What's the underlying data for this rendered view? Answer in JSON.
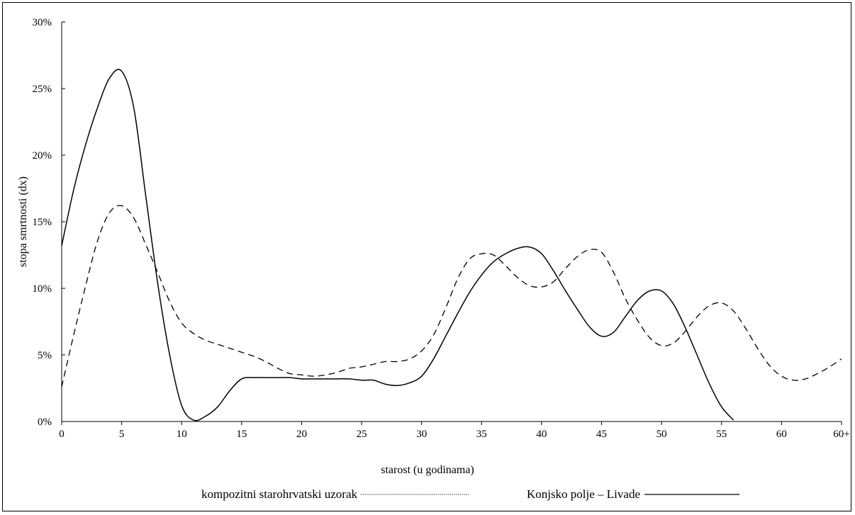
{
  "chart_data": {
    "type": "line",
    "title": "",
    "xlabel": "starost (u godinama)",
    "ylabel": "stopa smrtnosti (dx)",
    "x_ticks": [
      "0",
      "5",
      "10",
      "15",
      "20",
      "25",
      "30",
      "35",
      "40",
      "45",
      "50",
      "55",
      "60",
      "60+"
    ],
    "y_ticks": [
      "0%",
      "5%",
      "10%",
      "15%",
      "20%",
      "25%",
      "30%"
    ],
    "xlim": [
      0,
      65
    ],
    "ylim": [
      0,
      30
    ],
    "grid": false,
    "legend_position": "bottom",
    "series": [
      {
        "name": "kompozitni starohrvatski uzorak",
        "style": "dashed",
        "color": "#000000",
        "points": [
          [
            0,
            2.6
          ],
          [
            1,
            6.5
          ],
          [
            2,
            10.2
          ],
          [
            3,
            13.6
          ],
          [
            4,
            15.7
          ],
          [
            5,
            16.2
          ],
          [
            6,
            15.3
          ],
          [
            7,
            13.3
          ],
          [
            8,
            11.2
          ],
          [
            9,
            9.0
          ],
          [
            10,
            7.4
          ],
          [
            11,
            6.6
          ],
          [
            12,
            6.1
          ],
          [
            13,
            5.8
          ],
          [
            14,
            5.5
          ],
          [
            15,
            5.2
          ],
          [
            16,
            4.9
          ],
          [
            17,
            4.5
          ],
          [
            18,
            4.0
          ],
          [
            19,
            3.6
          ],
          [
            20,
            3.5
          ],
          [
            21,
            3.4
          ],
          [
            22,
            3.5
          ],
          [
            23,
            3.7
          ],
          [
            24,
            4.0
          ],
          [
            25,
            4.1
          ],
          [
            26,
            4.3
          ],
          [
            27,
            4.5
          ],
          [
            28,
            4.5
          ],
          [
            29,
            4.7
          ],
          [
            30,
            5.3
          ],
          [
            31,
            6.5
          ],
          [
            32,
            8.5
          ],
          [
            33,
            10.7
          ],
          [
            34,
            12.2
          ],
          [
            35,
            12.6
          ],
          [
            36,
            12.5
          ],
          [
            37,
            11.7
          ],
          [
            38,
            10.8
          ],
          [
            39,
            10.2
          ],
          [
            40,
            10.1
          ],
          [
            41,
            10.5
          ],
          [
            42,
            11.5
          ],
          [
            43,
            12.4
          ],
          [
            44,
            12.9
          ],
          [
            45,
            12.7
          ],
          [
            46,
            11.2
          ],
          [
            47,
            9.2
          ],
          [
            48,
            7.6
          ],
          [
            49,
            6.3
          ],
          [
            50,
            5.7
          ],
          [
            51,
            5.9
          ],
          [
            52,
            6.8
          ],
          [
            53,
            7.9
          ],
          [
            54,
            8.7
          ],
          [
            55,
            8.9
          ],
          [
            56,
            8.3
          ],
          [
            57,
            7.0
          ],
          [
            58,
            5.5
          ],
          [
            59,
            4.2
          ],
          [
            60,
            3.4
          ],
          [
            61,
            3.1
          ],
          [
            62,
            3.2
          ],
          [
            63,
            3.6
          ],
          [
            64,
            4.1
          ],
          [
            65,
            4.7
          ]
        ]
      },
      {
        "name": "Konjsko polje – Livade",
        "style": "solid",
        "color": "#000000",
        "points": [
          [
            0,
            13.2
          ],
          [
            1,
            17.4
          ],
          [
            2,
            20.8
          ],
          [
            3,
            23.6
          ],
          [
            4,
            25.8
          ],
          [
            5,
            26.3
          ],
          [
            6,
            23.6
          ],
          [
            7,
            17.0
          ],
          [
            8,
            10.4
          ],
          [
            9,
            5.0
          ],
          [
            10,
            1.2
          ],
          [
            11,
            0.1
          ],
          [
            12,
            0.4
          ],
          [
            13,
            1.1
          ],
          [
            14,
            2.3
          ],
          [
            15,
            3.2
          ],
          [
            16,
            3.3
          ],
          [
            17,
            3.3
          ],
          [
            18,
            3.3
          ],
          [
            19,
            3.3
          ],
          [
            20,
            3.2
          ],
          [
            21,
            3.2
          ],
          [
            22,
            3.2
          ],
          [
            23,
            3.2
          ],
          [
            24,
            3.2
          ],
          [
            25,
            3.1
          ],
          [
            26,
            3.1
          ],
          [
            27,
            2.8
          ],
          [
            28,
            2.7
          ],
          [
            29,
            2.9
          ],
          [
            30,
            3.4
          ],
          [
            31,
            4.7
          ],
          [
            32,
            6.4
          ],
          [
            33,
            8.1
          ],
          [
            34,
            9.7
          ],
          [
            35,
            11.0
          ],
          [
            36,
            12.0
          ],
          [
            37,
            12.6
          ],
          [
            38,
            13.0
          ],
          [
            39,
            13.1
          ],
          [
            40,
            12.6
          ],
          [
            41,
            11.3
          ],
          [
            42,
            9.8
          ],
          [
            43,
            8.4
          ],
          [
            44,
            7.1
          ],
          [
            45,
            6.4
          ],
          [
            46,
            6.7
          ],
          [
            47,
            7.9
          ],
          [
            48,
            9.1
          ],
          [
            49,
            9.8
          ],
          [
            50,
            9.8
          ],
          [
            51,
            8.8
          ],
          [
            52,
            7.0
          ],
          [
            53,
            4.9
          ],
          [
            54,
            2.8
          ],
          [
            55,
            1.1
          ],
          [
            56,
            0.1
          ]
        ]
      }
    ]
  }
}
